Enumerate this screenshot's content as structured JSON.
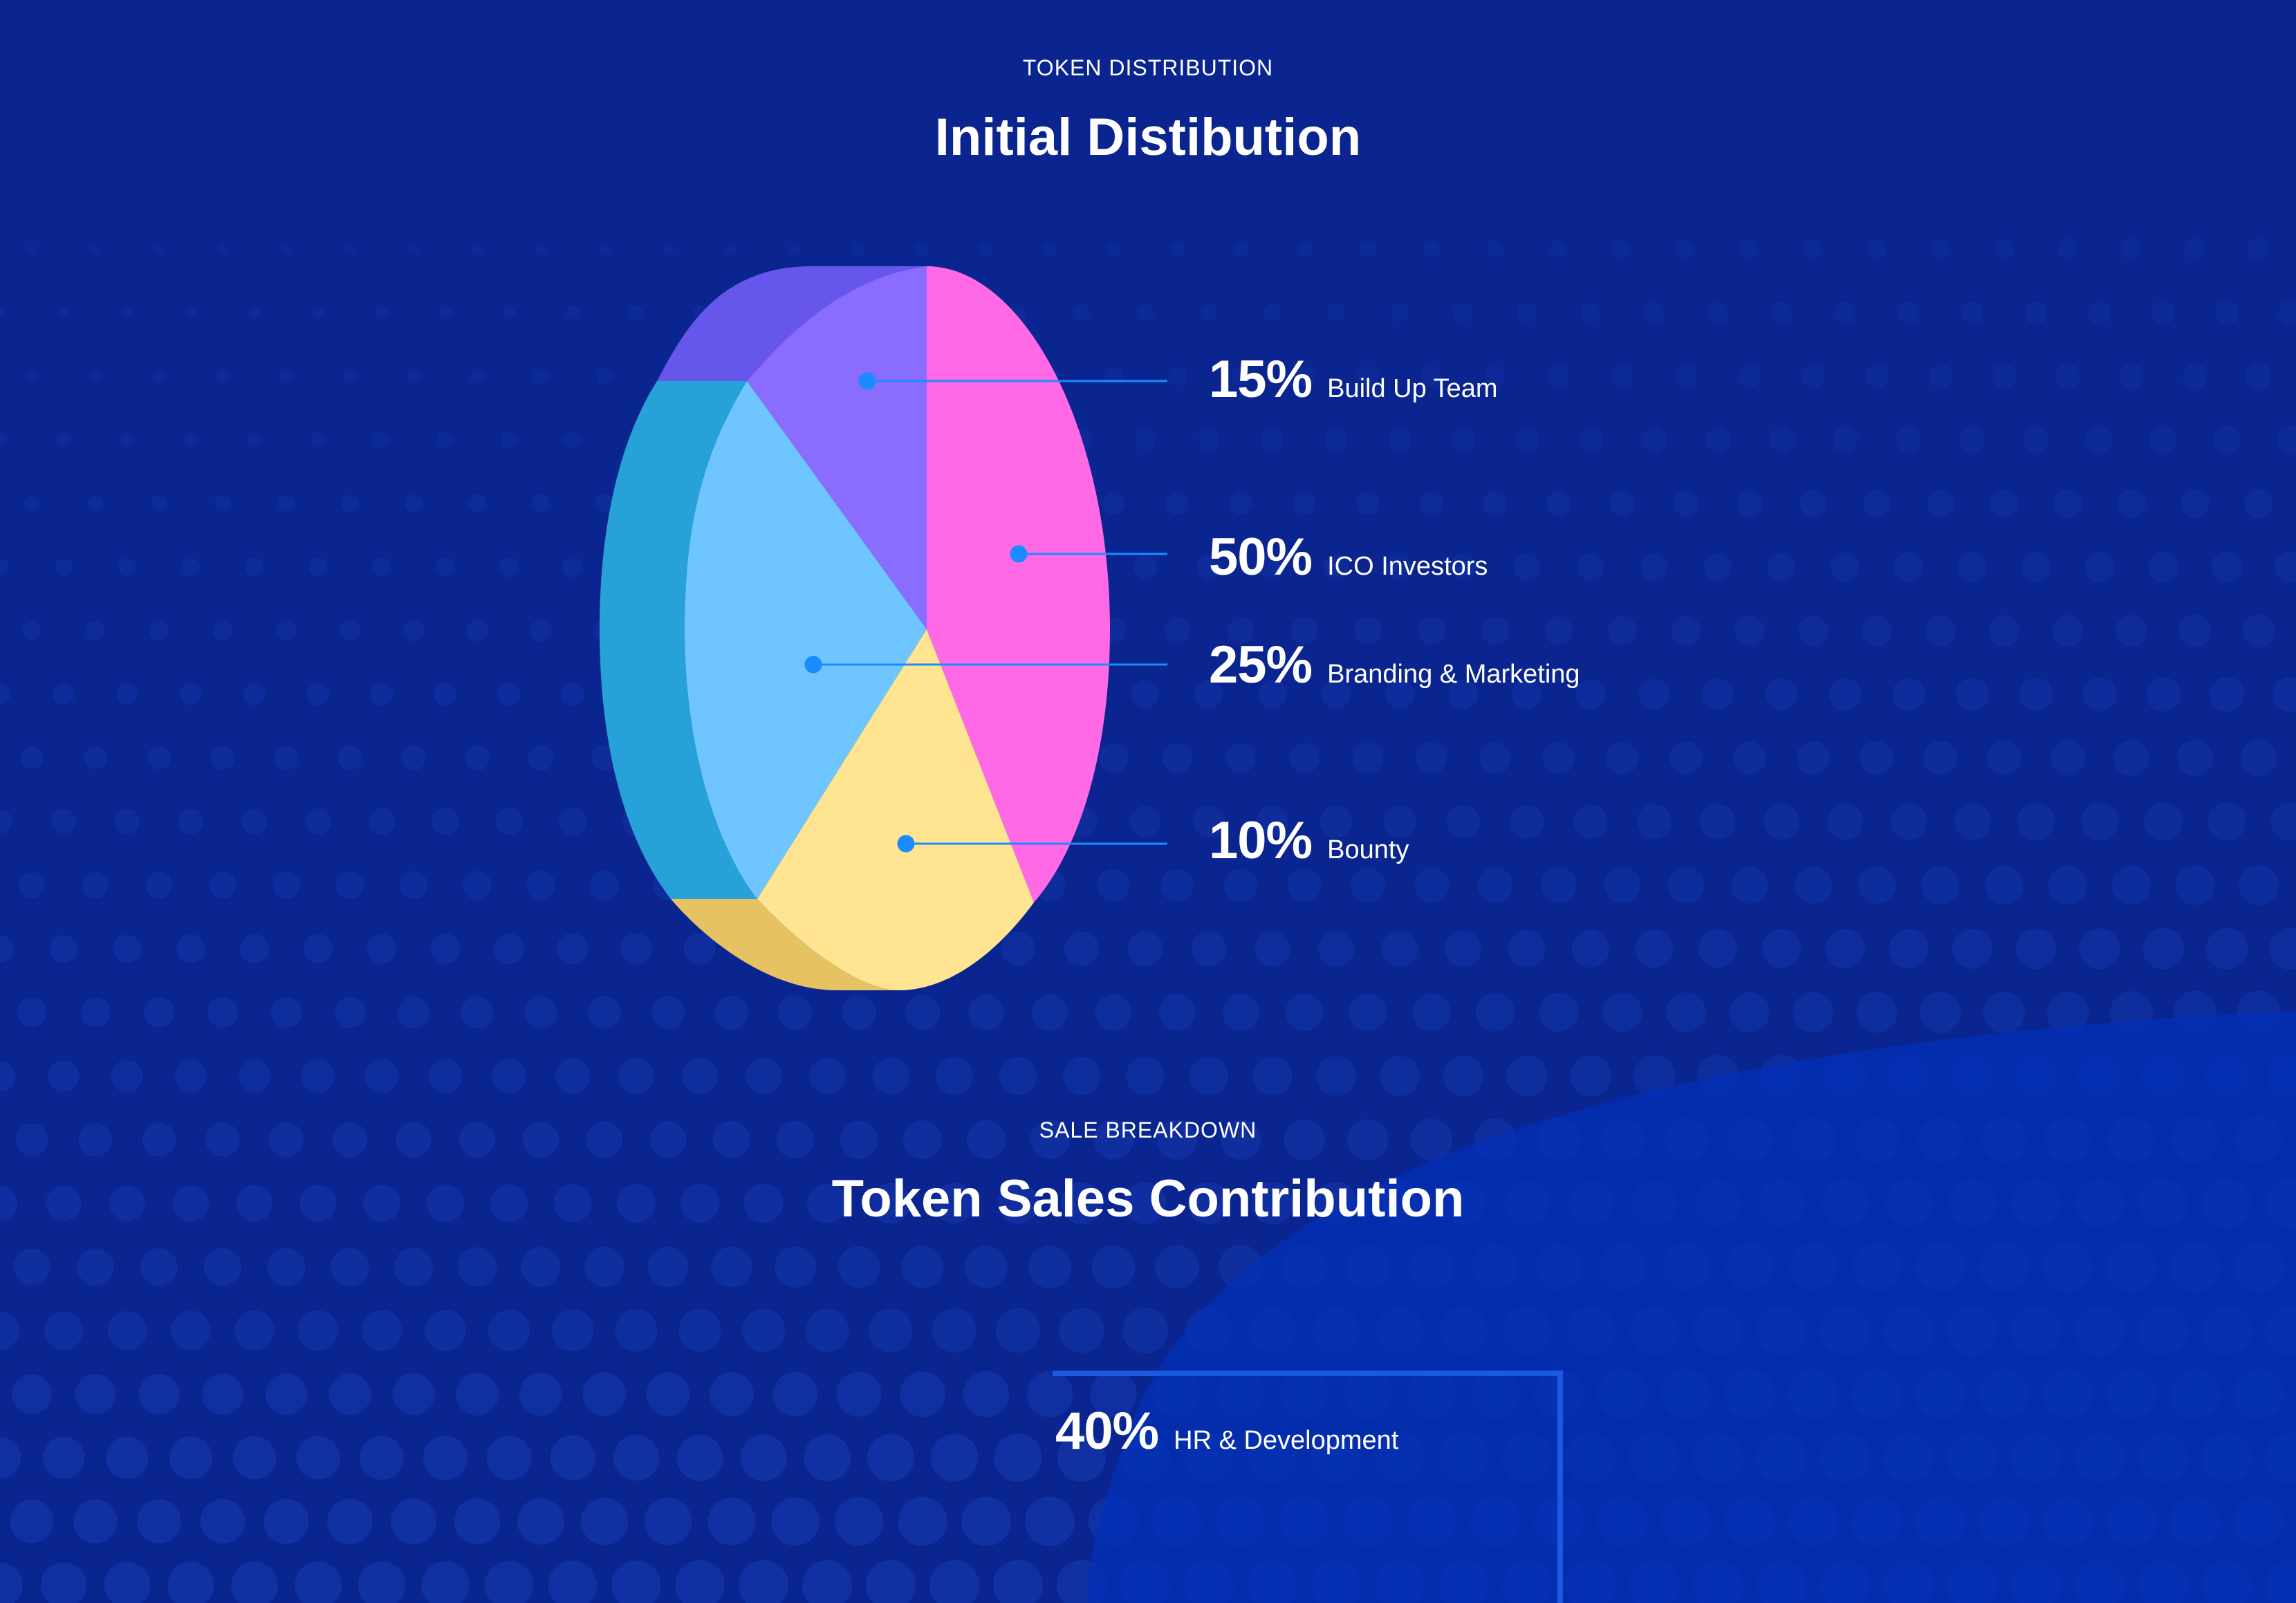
{
  "distribution": {
    "eyebrow": "TOKEN DISTRIBUTION",
    "title": "Initial Distibution",
    "items": [
      {
        "percent": "15%",
        "label": "Build Up Team",
        "color": "#8a6cff"
      },
      {
        "percent": "50%",
        "label": "ICO Investors",
        "color": "#ff69e6"
      },
      {
        "percent": "25%",
        "label": "Branding & Marketing",
        "color": "#6ec5ff"
      },
      {
        "percent": "10%",
        "label": "Bounty",
        "color": "#ffe591"
      }
    ]
  },
  "sale": {
    "eyebrow": "SALE BREAKDOWN",
    "title": "Token Sales Contribution",
    "items": [
      {
        "percent": "40%",
        "label": "HR & Development"
      }
    ]
  },
  "colors": {
    "background": "#0a2590",
    "accent_line": "#1a8cff",
    "frame": "#1a5ae0"
  }
}
